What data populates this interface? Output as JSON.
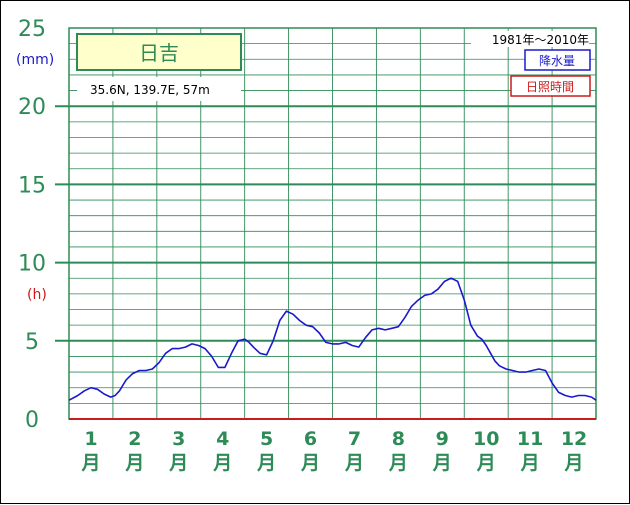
{
  "colors": {
    "grid": "#2e8b57",
    "precip_line": "#1a1acc",
    "sun_line": "#cc1a1a",
    "title_bg": "#ffffcc",
    "title_border": "#2e8b57"
  },
  "chart_data": {
    "type": "line",
    "title": "日吉",
    "location_info": "35.6N,  139.7E,  57m",
    "period": "1981年〜2010年",
    "units": {
      "precip": "(mm)",
      "sun": "(h)"
    },
    "ylim": [
      0,
      25
    ],
    "yticks": [
      "0",
      "5",
      "10",
      "15",
      "20",
      "25"
    ],
    "categories": [
      "1",
      "2",
      "3",
      "4",
      "5",
      "6",
      "7",
      "8",
      "9",
      "10",
      "11",
      "12"
    ],
    "month_suffix": "月",
    "legend": [
      "降水量",
      "日照時間"
    ],
    "grid": true,
    "series": [
      {
        "name": "降水量",
        "color": "#1a1acc",
        "x": [
          0.0,
          0.2,
          0.35,
          0.5,
          0.65,
          0.8,
          0.95,
          1.05,
          1.15,
          1.3,
          1.45,
          1.6,
          1.75,
          1.9,
          2.05,
          2.2,
          2.35,
          2.5,
          2.65,
          2.8,
          2.95,
          3.1,
          3.25,
          3.4,
          3.55,
          3.7,
          3.85,
          4.0,
          4.1,
          4.2,
          4.35,
          4.5,
          4.65,
          4.8,
          4.95,
          5.1,
          5.25,
          5.4,
          5.55,
          5.7,
          5.85,
          6.0,
          6.15,
          6.3,
          6.45,
          6.6,
          6.75,
          6.9,
          7.05,
          7.2,
          7.35,
          7.5,
          7.65,
          7.8,
          7.95,
          8.1,
          8.25,
          8.4,
          8.55,
          8.7,
          8.85,
          9.0,
          9.15,
          9.3,
          9.4,
          9.5,
          9.6,
          9.7,
          9.8,
          9.95,
          10.1,
          10.25,
          10.4,
          10.55,
          10.7,
          10.85,
          11.0,
          11.15,
          11.3,
          11.45,
          11.6,
          11.75,
          11.9,
          12.0
        ],
        "values": [
          1.2,
          1.5,
          1.8,
          2.0,
          1.9,
          1.6,
          1.4,
          1.5,
          1.8,
          2.5,
          2.9,
          3.1,
          3.1,
          3.2,
          3.6,
          4.2,
          4.5,
          4.5,
          4.6,
          4.8,
          4.7,
          4.5,
          4.0,
          3.3,
          3.3,
          4.2,
          5.0,
          5.1,
          4.9,
          4.6,
          4.2,
          4.1,
          5.0,
          6.3,
          6.9,
          6.7,
          6.3,
          6.0,
          5.9,
          5.5,
          4.9,
          4.8,
          4.8,
          4.9,
          4.7,
          4.6,
          5.2,
          5.7,
          5.8,
          5.7,
          5.8,
          5.9,
          6.5,
          7.2,
          7.6,
          7.9,
          8.0,
          8.3,
          8.8,
          9.0,
          8.8,
          7.6,
          6.0,
          5.3,
          5.1,
          4.7,
          4.2,
          3.7,
          3.4,
          3.2,
          3.1,
          3.0,
          3.0,
          3.1,
          3.2,
          3.1,
          2.3,
          1.7,
          1.5,
          1.4,
          1.5,
          1.5,
          1.4,
          1.2
        ]
      }
    ]
  }
}
